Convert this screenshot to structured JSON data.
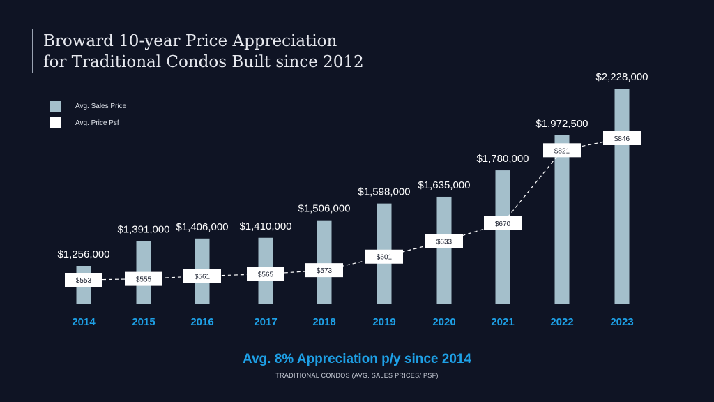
{
  "title_line1": "Broward 10-year Price Appreciation",
  "title_line2": "for Traditional Condos Built since 2012",
  "legend": [
    {
      "label": "Avg. Sales Price",
      "color": "#a4bfcb"
    },
    {
      "label": "Avg. Price Psf",
      "color": "#ffffff"
    }
  ],
  "summary": "Avg. 8% Appreciation p/y since 2014",
  "subtitle": "TRADITIONAL CONDOS (AVG. SALES PRICES/ PSF)",
  "colors": {
    "bar": "#a4bfcb",
    "year_label": "#1ea0e6",
    "background": "#0f1424",
    "line": "#ffffff"
  },
  "chart_data": {
    "type": "bar",
    "categories": [
      "2014",
      "2015",
      "2016",
      "2017",
      "2018",
      "2019",
      "2020",
      "2021",
      "2022",
      "2023"
    ],
    "series": [
      {
        "name": "Avg. Sales Price",
        "type": "bar",
        "values": [
          1256000,
          1391000,
          1406000,
          1410000,
          1506000,
          1598000,
          1635000,
          1780000,
          1972500,
          2228000
        ],
        "labels": [
          "$1,256,000",
          "$1,391,000",
          "$1,406,000",
          "$1,410,000",
          "$1,506,000",
          "$1,598,000",
          "$1,635,000",
          "$1,780,000",
          "$1,972,500",
          "$2,228,000"
        ]
      },
      {
        "name": "Avg. Price Psf",
        "type": "line",
        "style": "dashed",
        "values": [
          553,
          555,
          561,
          565,
          573,
          601,
          633,
          670,
          821,
          846
        ],
        "labels": [
          "$553",
          "$555",
          "$561",
          "$565",
          "$573",
          "$601",
          "$633",
          "$670",
          "$821",
          "$846"
        ]
      }
    ]
  }
}
